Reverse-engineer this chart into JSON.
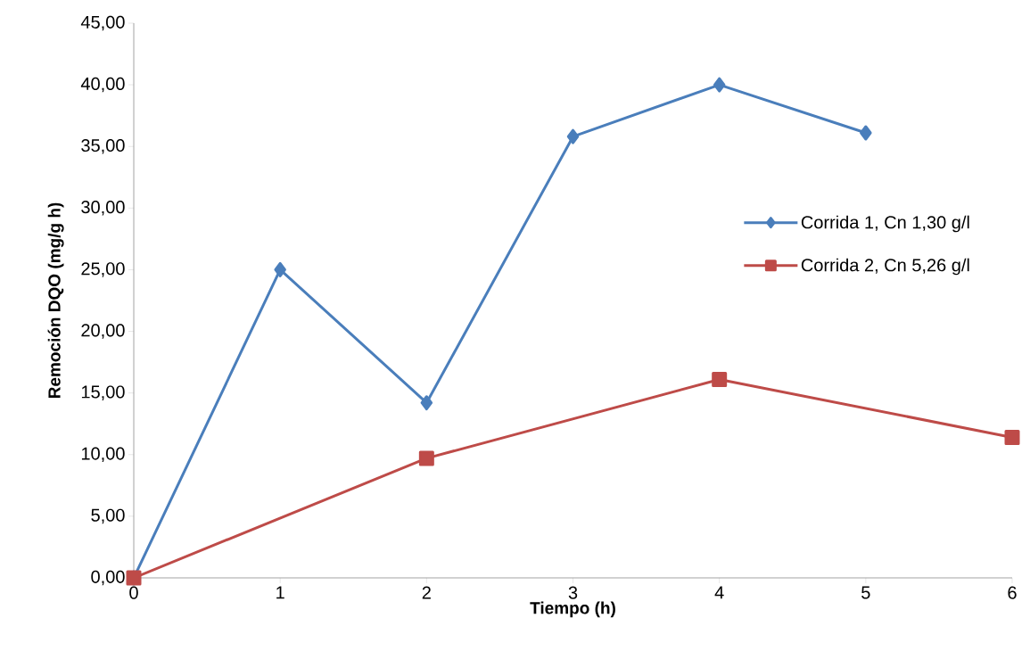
{
  "chart_data": {
    "type": "line",
    "xlabel": "Tiempo (h)",
    "ylabel": "Remoción  DQO (mg/g h)",
    "xlim": [
      0,
      6
    ],
    "xticks": [
      0,
      1,
      2,
      3,
      4,
      5,
      6
    ],
    "ylim": [
      0,
      45
    ],
    "yticks": [
      {
        "value": 0,
        "label": "0,00"
      },
      {
        "value": 5,
        "label": "5,00"
      },
      {
        "value": 10,
        "label": "10,00"
      },
      {
        "value": 15,
        "label": "15,00"
      },
      {
        "value": 20,
        "label": "20,00"
      },
      {
        "value": 25,
        "label": "25,00"
      },
      {
        "value": 30,
        "label": "30,00"
      },
      {
        "value": 35,
        "label": "35,00"
      },
      {
        "value": 40,
        "label": "40,00"
      },
      {
        "value": 45,
        "label": "45,00"
      }
    ],
    "grid": false,
    "legend": "right",
    "line_style": "solid",
    "series": [
      {
        "name": "Corrida 1, Cn 1,30 g/l",
        "color": "#4a7ebb",
        "marker": "diamond",
        "x": [
          0,
          1,
          2,
          3,
          4,
          5
        ],
        "values": [
          0,
          25.0,
          14.2,
          35.8,
          40.0,
          36.1
        ]
      },
      {
        "name": "Corrida 2, Cn 5,26 g/l",
        "color": "#be4b48",
        "marker": "square",
        "x": [
          0,
          2,
          4,
          6
        ],
        "values": [
          0,
          9.7,
          16.1,
          11.4
        ]
      }
    ]
  }
}
